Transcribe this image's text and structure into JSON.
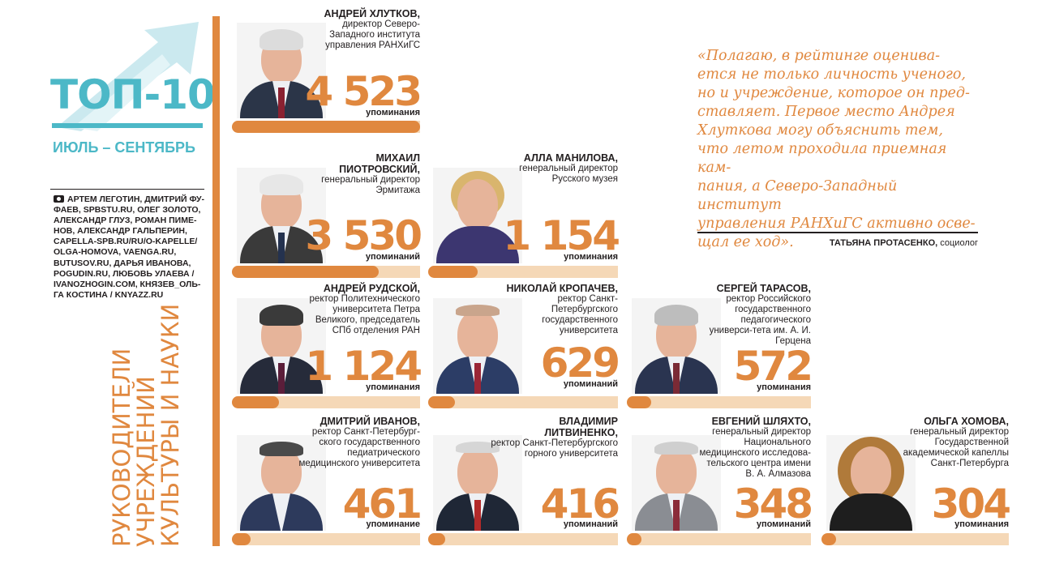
{
  "header": {
    "title": "ТОП-10",
    "period": "ИЮЛЬ – СЕНТЯБРЬ",
    "credits": "АРТЕМ ЛЕГОТИН, ДМИТРИЙ ФУ-ФАЕВ, SPBSTU.RU, ОЛЕГ ЗОЛОТО, АЛЕКСАНДР ГЛУЗ, РОМАН ПИМЕ-НОВ, АЛЕКСАНДР ГАЛЬПЕРИН, CAPELLA-SPB.RU/RU/O-KAPELLE/ OLGA-HOMOVA, VAENGA.RU, BUTUSOV.RU, ДАРЬЯ ИВАНОВА, POGUDIN.RU, ЛЮБОВЬ УЛАЕВА / IVANOZHOGIN.COM, КНЯЗЕВ_ОЛЬ-ГА КОСТИНА / KNYAZZ.RU",
    "vertical_title": [
      "Руководители",
      "учреждений",
      "культуры и науки"
    ]
  },
  "quote": {
    "text": "«Полагаю, в рейтинге оценива-\nется не только личность ученого,\nно и учреждение, которое он пред-\nставляет. Первое место Андрея\nХлуткова могу объяснить тем,\nчто летом проходила приемная кам-\nпания, а Северо-Западный институт\nуправления РАНХиГС активно осве-\nщал ее ход».",
    "author": "ТАТЬЯНА ПРОТАСЕНКО,",
    "author_role": " социолог"
  },
  "ranking": [
    {
      "name": "АНДРЕЙ ХЛУТКОВ,",
      "position": "директор Северо-Западного института управления РАНХиГС",
      "mentions": "4 523",
      "mentions_label": "упоминания",
      "share": 1.0
    },
    {
      "name": "МИХАИЛ ПИОТРОВСКИЙ,",
      "position": "генеральный директор Эрмитажа",
      "mentions": "3 530",
      "mentions_label": "упоминаний",
      "share": 0.78
    },
    {
      "name": "АЛЛА МАНИЛОВА,",
      "position": "генеральный директор Русского музея",
      "mentions": "1 154",
      "mentions_label": "упоминания",
      "share": 0.26
    },
    {
      "name": "АНДРЕЙ РУДСКОЙ,",
      "position": "ректор Политехнического университета Петра Великого, председатель СПб отделения РАН",
      "mentions": "1 124",
      "mentions_label": "упоминания",
      "share": 0.25
    },
    {
      "name": "НИКОЛАЙ КРОПАЧЕВ,",
      "position": "ректор Санкт-Петербургского государственного университета",
      "mentions": "629",
      "mentions_label": "упоминаний",
      "share": 0.14
    },
    {
      "name": "СЕРГЕЙ ТАРАСОВ,",
      "position": "ректор Российского государственного педагогического универси-тета им. А. И. Герцена",
      "mentions": "572",
      "mentions_label": "упоминания",
      "share": 0.13
    },
    {
      "name": "ДМИТРИЙ ИВАНОВ,",
      "position": "ректор Санкт-Петербург-ского государственного педиатрического медицинского университета",
      "mentions": "461",
      "mentions_label": "упоминание",
      "share": 0.1
    },
    {
      "name": "ВЛАДИМИР ЛИТВИНЕНКО,",
      "position": "ректор Санкт-Петербургского горного университета",
      "mentions": "416",
      "mentions_label": "упоминаний",
      "share": 0.09
    },
    {
      "name": "ЕВГЕНИЙ ШЛЯХТО,",
      "position": "генеральный директор Национального медицинского исследова-тельского центра имени В. А. Алмазова",
      "mentions": "348",
      "mentions_label": "упоминаний",
      "share": 0.08
    },
    {
      "name": "ОЛЬГА ХОМОВА,",
      "position": "генеральный директор Государственной академической капеллы Санкт-Петербурга",
      "mentions": "304",
      "mentions_label": "упоминания",
      "share": 0.07
    }
  ],
  "colors": {
    "accent": "#e0883f",
    "accent_light": "#f5d8b7",
    "title": "#4cb8c7"
  },
  "icons": {
    "credits": "camera-icon",
    "header": "up-arrow-icon"
  }
}
